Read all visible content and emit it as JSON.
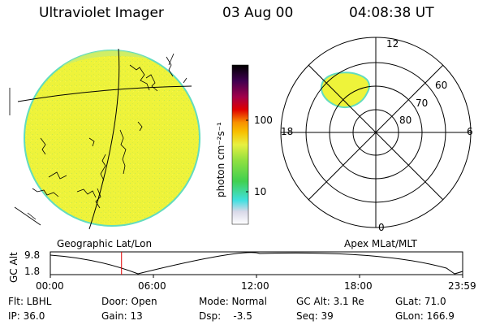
{
  "header": {
    "title": "Ultraviolet Imager",
    "date": "03 Aug 00",
    "time": "04:08:38 UT"
  },
  "colorbar": {
    "unit_label": "photon cm⁻²s⁻¹",
    "ticks": [
      "100",
      "10"
    ]
  },
  "polar": {
    "mlt_labels": [
      "12",
      "18",
      "6",
      "0"
    ],
    "lat_labels": [
      "60",
      "70",
      "80"
    ]
  },
  "panel_labels": {
    "left": "Geographic Lat/Lon",
    "right": "Apex MLat/MLT"
  },
  "timeline": {
    "ylabel": "GC Alt",
    "yticks": [
      "9.8",
      "1.8"
    ],
    "xticks": [
      "00:00",
      "06:00",
      "12:00",
      "18:00",
      "23:59"
    ],
    "current_time_fraction": 0.1727
  },
  "info": {
    "filter": "Flt: LBHL",
    "door": "Door: Open",
    "mode": "Mode: Normal",
    "gc_alt": "GC Alt: 3.1 Re",
    "glat": "GLat:  71.0",
    "ip": "IP: 36.0",
    "gain": "Gain: 13",
    "dsp": "Dsp:    -3.5",
    "seq": "Seq: 39",
    "glon": "GLon: 166.9"
  },
  "colors": {
    "disk_fill": "#f0f53c",
    "disk_edge": "#62dcbe",
    "current_time_marker": "#e00000"
  }
}
